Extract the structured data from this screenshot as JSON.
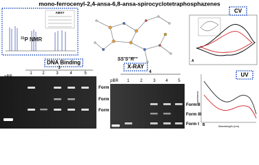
{
  "title": "mono-ferrocenyl-2,4-ansa-6,8-ansa-spirocyclotetraphosphazenes",
  "nmr": {
    "label_sup": "31",
    "label": "P NMR",
    "legend_title": "AMXY"
  },
  "xray": {
    "label": "X-RAY",
    "configuration": "SS'S''R'''"
  },
  "cv": {
    "label": "CV",
    "panel": "A"
  },
  "uv": {
    "label": "UV",
    "panel": "B",
    "x_label": "Wavelength (nm)",
    "y_label": "Absorbance"
  },
  "dna": {
    "label": "DNA Binding",
    "gels": [
      {
        "compound": "3",
        "lanes": [
          "pBR",
          "1",
          "2",
          "3",
          "4",
          "5"
        ],
        "forms": [
          "Form II",
          "Form III",
          "Form I"
        ]
      },
      {
        "compound": "4",
        "lanes": [
          "pBR",
          "1",
          "2",
          "3",
          "4",
          "5"
        ],
        "forms": [
          "Form II",
          "Form III",
          "Form I"
        ]
      }
    ]
  }
}
